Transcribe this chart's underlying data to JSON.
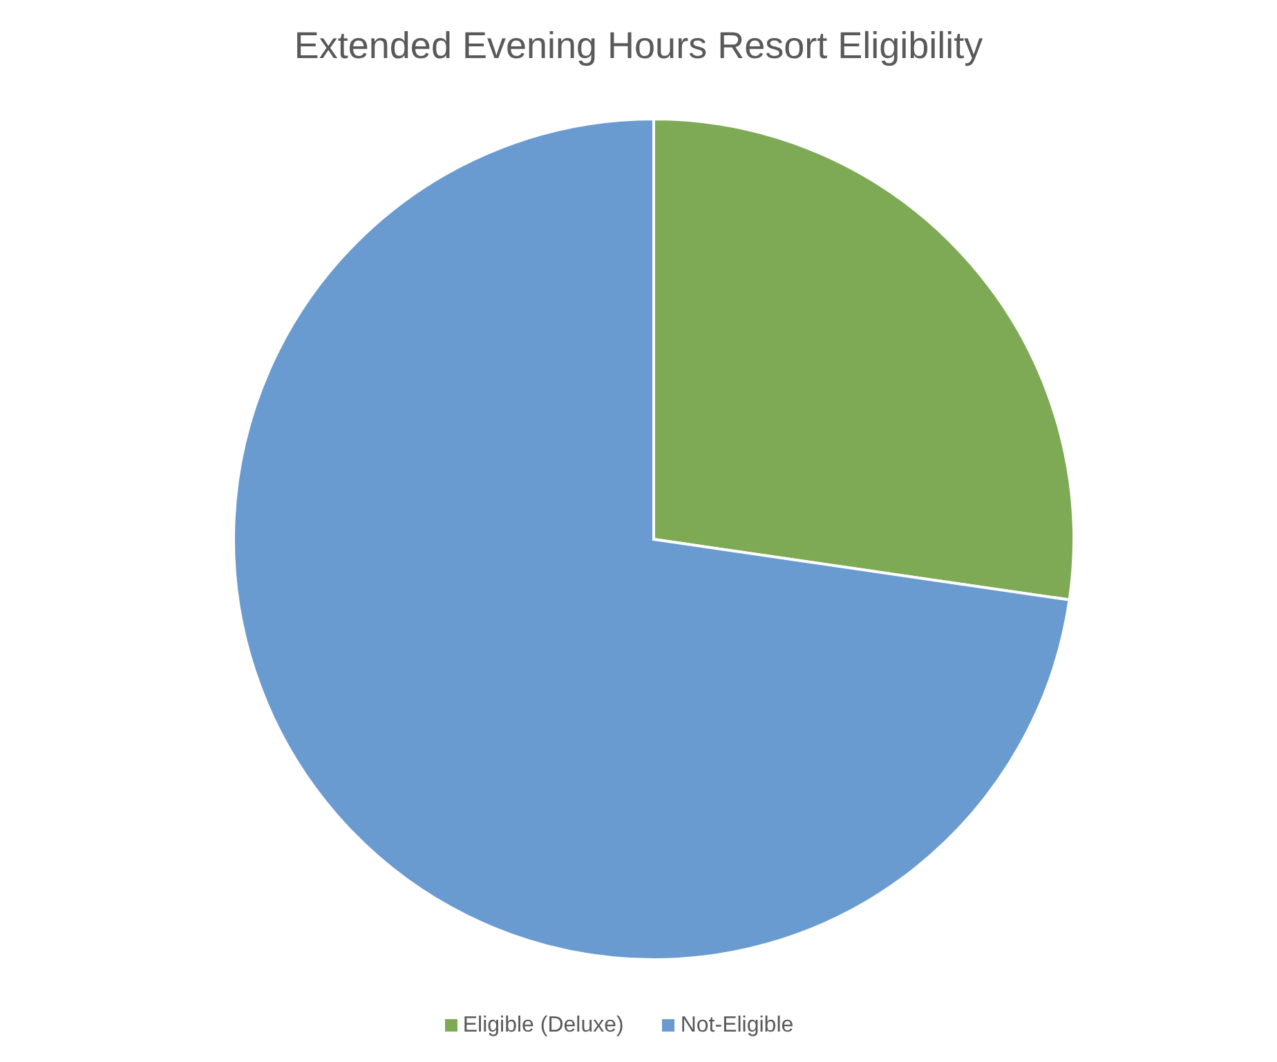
{
  "chart_data": {
    "type": "pie",
    "title": "Extended Evening Hours Resort Eligibility",
    "categories": [
      "Eligible (Deluxe)",
      "Not-Eligible"
    ],
    "values": [
      27.3,
      72.7
    ],
    "colors": [
      "#7faa55",
      "#6a9bd0"
    ],
    "legend": "bottom"
  }
}
